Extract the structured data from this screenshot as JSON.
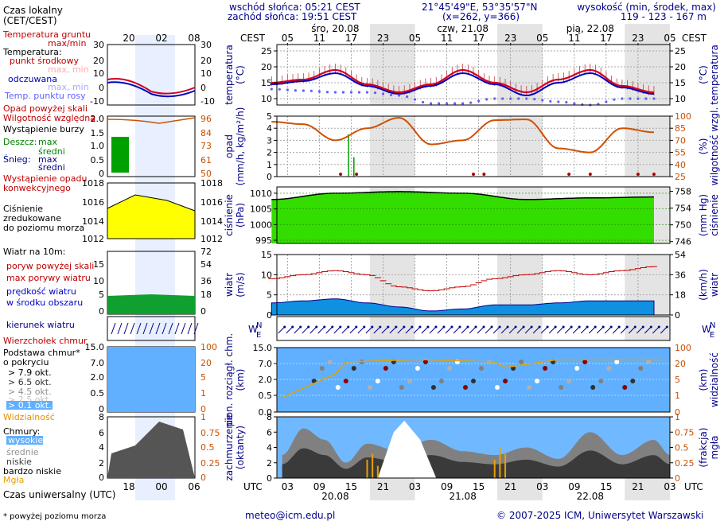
{
  "header": {
    "sunrise": "wschód słońca: 05:21 CEST",
    "sunset": "zachód słońca: 19:51 CEST",
    "coords": "21°45'49\"E, 53°35'57\"N",
    "grid": "(x=262, y=366)",
    "altitude_label": "wysokość (min, środek, max)",
    "altitude_values": "119 - 123 - 167 m"
  },
  "legend": {
    "local_time": "Czas lokalny",
    "local_time_tz": "(CET/CEST)",
    "soil_temp": "Temperatura gruntu",
    "soil_temp_range": "max/min",
    "temp": "Temperatura:",
    "temp_center": "punkt środkowy",
    "temp_center_range": "max, min",
    "perceived": "odczuwana",
    "perceived_range": "max, min",
    "dew": "Temp. punktu rosy",
    "precip_above": "Opad powyżej skali",
    "humidity": "Wilgotność względna",
    "storm": "Wystąpienie burzy",
    "rain": "Deszcz:",
    "rain_max": "max",
    "rain_mid": "średni",
    "snow": "Śnieg:",
    "snow_max": "max",
    "snow_mid": "średni",
    "conv": "Wystąpienie opadu",
    "conv2": "konwekcyjnego",
    "pressure1": "Ciśnienie",
    "pressure2": "zredukowane",
    "pressure3": "do poziomu morza",
    "wind": "Wiatr na 10m:",
    "gust_above": "poryw powyżej skali",
    "gust_max": "max porywy wiatru",
    "wind_speed": "prędkość wiatru",
    "wind_area": "w środku obszaru",
    "wind_dir": "kierunek wiatru",
    "cloud_top": "Wierzchołek chmur",
    "cloud_base1": "Podstawa chmur*",
    "cloud_base2": "o pokryciu",
    "okt1": "> 7.9 okt.",
    "okt2": "> 6.5 okt.",
    "okt3": "> 4.5 okt.",
    "okt4": "> 2.5 okt.",
    "okt5": "> 0.1 okt.",
    "visibility": "Widzialność",
    "clouds": "Chmury:",
    "high": "wysokie",
    "mid": "średnie",
    "low": "niskie",
    "vlow": "bardzo niskie",
    "fog": "Mgła",
    "utc": "Czas uniwersalny (UTC)",
    "footnote": "* powyżej poziomu morza"
  },
  "axes_labels": {
    "cest": "CEST",
    "utc": "UTC",
    "temperature": "temperatura",
    "temp_unit": "(°C)",
    "precip": "opad",
    "precip_unit": "(mm/h, kg/m²/h)",
    "humidity": "wilgotność wzgl.",
    "humidity_unit": "(%)",
    "pressure": "ciśnienie",
    "pressure_unit": "(hPa)",
    "pressure_unit2": "(mm Hg)",
    "wind": "wiatr",
    "wind_unit": "(m/s)",
    "wind_unit2": "(km/h)",
    "cloudbase": "pion. rozciągł. chm.",
    "cloudbase_unit": "(km)",
    "visibility": "widzialność",
    "visibility_unit": "(km)",
    "cover": "zachmurzenie",
    "cover_unit": "(oktanty)",
    "fog": "mgła",
    "fog_unit": "(frakcja)"
  },
  "dates_top": [
    "śro, 20.08",
    "czw, 21.08",
    "pią, 22.08"
  ],
  "dates_bottom": [
    "20.08",
    "21.08",
    "22.08"
  ],
  "local_hours": [
    "05",
    "11",
    "17",
    "23",
    "05",
    "11",
    "17",
    "23",
    "05",
    "11",
    "17",
    "23",
    "05"
  ],
  "utc_hours": [
    "03",
    "09",
    "15",
    "21",
    "03",
    "09",
    "15",
    "21",
    "03",
    "09",
    "15",
    "21",
    "03"
  ],
  "legend_hours_top": [
    "20",
    "02",
    "08"
  ],
  "legend_hours_bottom": [
    "18",
    "00",
    "06"
  ],
  "footer": {
    "email": "meteo@icm.edu.pl",
    "copyright": "© 2007-2025 ICM, Uniwersytet Warszawski"
  },
  "colors": {
    "temp": "#d00020",
    "perceived": "#0000c0",
    "dew": "#6060ff",
    "humidity": "#d05000",
    "pressure_fill": "#33dd00",
    "wind_fill": "#1090e0",
    "gust": "#c00000",
    "cloud_bg": "#60b0ff",
    "cover": "#606060"
  },
  "chart_data": [
    {
      "type": "line",
      "panel": "temperature",
      "ylim": [
        8,
        27
      ],
      "yticks": [
        10,
        15,
        20,
        25
      ],
      "x_hours_from_0h_20_08_CEST": [
        2,
        8,
        14,
        20,
        26,
        32,
        38,
        44,
        50,
        56,
        62,
        68,
        74
      ],
      "series": [
        {
          "name": "punkt środkowy",
          "values": [
            15,
            16,
            19,
            14.5,
            12,
            14.5,
            19,
            15,
            12,
            16,
            19,
            14,
            12
          ]
        },
        {
          "name": "odczuwana",
          "values": [
            14.5,
            15.5,
            18,
            14,
            11.5,
            14,
            18,
            14.5,
            11,
            15,
            18,
            13.5,
            11.5
          ]
        },
        {
          "name": "Temp. punktu rosy",
          "values": [
            13,
            12.5,
            12,
            12,
            11,
            8.5,
            8.5,
            10,
            10,
            9,
            8,
            10,
            10
          ]
        }
      ]
    },
    {
      "type": "line",
      "panel": "precip_humidity",
      "ylim_precip": [
        0,
        5
      ],
      "ylim_humidity": [
        25,
        100
      ],
      "yticks_precip": [
        0,
        1,
        2,
        3,
        4,
        5
      ],
      "yticks_humidity": [
        25,
        40,
        55,
        70,
        85,
        100
      ],
      "x_hours_from_0h_20_08_CEST": [
        2,
        8,
        14,
        20,
        26,
        32,
        38,
        44,
        50,
        56,
        62,
        68,
        74
      ],
      "series": [
        {
          "name": "Wilgotność względna",
          "values": [
            93,
            90,
            70,
            85,
            98,
            65,
            70,
            95,
            96,
            60,
            55,
            85,
            80
          ]
        }
      ]
    },
    {
      "type": "area",
      "panel": "pressure",
      "ylim": [
        994,
        1012
      ],
      "yticks": [
        995,
        1000,
        1005,
        1010
      ],
      "yticks_mmhg": [
        746,
        750,
        754,
        758
      ],
      "x_hours_from_0h_20_08_CEST": [
        2,
        14,
        26,
        38,
        50,
        62,
        74
      ],
      "values": [
        1008,
        1010,
        1010.5,
        1010,
        1008,
        1008.5,
        1008.8
      ]
    },
    {
      "type": "area",
      "panel": "wind",
      "ylim": [
        0,
        15
      ],
      "yticks": [
        0,
        5,
        10,
        15
      ],
      "yticks_kmh": [
        0,
        18,
        36,
        54
      ],
      "x_hours_from_0h_20_08_CEST": [
        2,
        8,
        14,
        20,
        26,
        32,
        38,
        44,
        50,
        56,
        62,
        68,
        74
      ],
      "series": [
        {
          "name": "prędkość wiatru",
          "values": [
            3,
            3.5,
            4,
            3,
            2,
            1,
            1.5,
            2.5,
            2.5,
            3,
            3.5,
            3.5,
            3.5
          ]
        },
        {
          "name": "max porywy wiatru",
          "values": [
            9,
            10,
            11,
            10,
            7,
            6,
            7,
            9,
            10,
            11,
            10,
            11,
            12
          ]
        }
      ]
    },
    {
      "type": "scatter",
      "panel": "cloudbase_visibility",
      "ylim": [
        0,
        15
      ],
      "yticks": [
        0,
        0.5,
        2.0,
        7.0,
        15.0
      ],
      "yticks_visibility": [
        0,
        1,
        5,
        20,
        100
      ]
    },
    {
      "type": "area",
      "panel": "cloud_cover_fog",
      "ylim": [
        0,
        8
      ],
      "yticks": [
        0,
        2,
        4,
        6,
        8
      ],
      "yticks_fog": [
        0,
        0.25,
        0.5,
        0.75,
        1
      ]
    }
  ]
}
